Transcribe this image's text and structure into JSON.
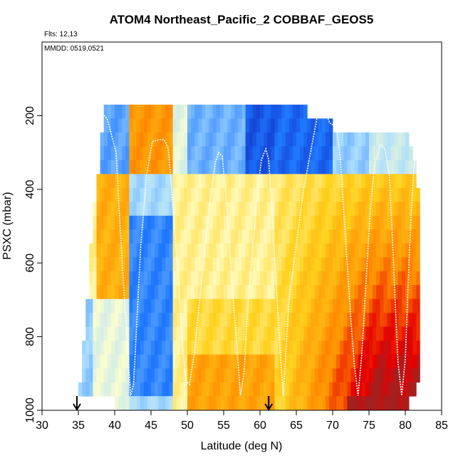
{
  "chart_data": {
    "type": "heatmap",
    "title": "ATOM4 Northeast_Pacific_2 COBBAF_GEOS5",
    "annotations": [
      "Flts: 12,13",
      "MMDD: 0519,0521"
    ],
    "xlabel": "Latitude (deg N)",
    "ylabel": "PSXC (mbar)",
    "xlim": [
      30,
      85
    ],
    "ylim": [
      1000,
      0
    ],
    "xticks": [
      30,
      35,
      40,
      45,
      50,
      55,
      60,
      65,
      70,
      75,
      80,
      85
    ],
    "yticks": [
      200,
      400,
      600,
      800,
      1000
    ],
    "grid": false,
    "legend": "none",
    "arrows_at_latitude": [
      34.8,
      61.2
    ],
    "colors": {
      "dark_blue": "#0a0aa8",
      "blue": "#1e78ff",
      "light_blue": "#a8dcff",
      "pale": "#ffffcc",
      "yellow": "#ffd21e",
      "orange": "#ff8c00",
      "red": "#e60000",
      "dark_red": "#a52020",
      "flight_track": "#ffffff"
    },
    "flight_track": {
      "latitude": [
        34.8,
        35.1,
        35.4,
        35.8,
        36.2,
        36.8,
        37.5,
        38.2,
        38.6,
        39.0,
        39.8,
        40.2,
        40.6,
        41.2,
        41.8,
        42.2,
        42.6,
        43.0,
        43.6,
        44.4,
        45.2,
        46.2,
        46.8,
        47.4,
        47.8,
        48.2,
        48.6,
        49.0,
        49.4,
        49.8,
        50.3,
        51.0,
        52.0,
        53.0,
        53.8,
        54.3,
        54.8,
        55.3,
        55.8,
        56.3,
        56.8,
        57.3,
        57.8,
        58.3,
        59.0,
        59.6,
        60.2,
        60.8,
        61.2,
        61.6,
        62.2,
        62.8,
        63.2,
        64.0,
        66.0,
        68.0,
        69.0,
        69.6,
        70.5,
        71.0,
        71.5,
        72.0,
        72.5,
        73.0,
        73.5,
        74.0,
        74.6,
        75.2,
        75.8,
        76.6,
        77.2,
        77.8,
        78.2,
        78.6,
        79.0,
        79.5,
        80.0,
        80.4,
        80.8,
        81.2,
        81.5
      ],
      "pressure": [
        960,
        850,
        650,
        460,
        360,
        300,
        240,
        200,
        200,
        210,
        270,
        300,
        450,
        650,
        830,
        960,
        930,
        780,
        550,
        360,
        270,
        265,
        265,
        290,
        390,
        500,
        600,
        720,
        840,
        920,
        930,
        840,
        640,
        450,
        330,
        300,
        310,
        420,
        560,
        700,
        820,
        960,
        900,
        720,
        560,
        420,
        320,
        290,
        320,
        440,
        650,
        850,
        960,
        700,
        400,
        190,
        190,
        220,
        230,
        300,
        450,
        600,
        750,
        880,
        960,
        850,
        650,
        450,
        330,
        280,
        290,
        360,
        520,
        700,
        870,
        960,
        860,
        650,
        460,
        340,
        280
      ]
    }
  }
}
